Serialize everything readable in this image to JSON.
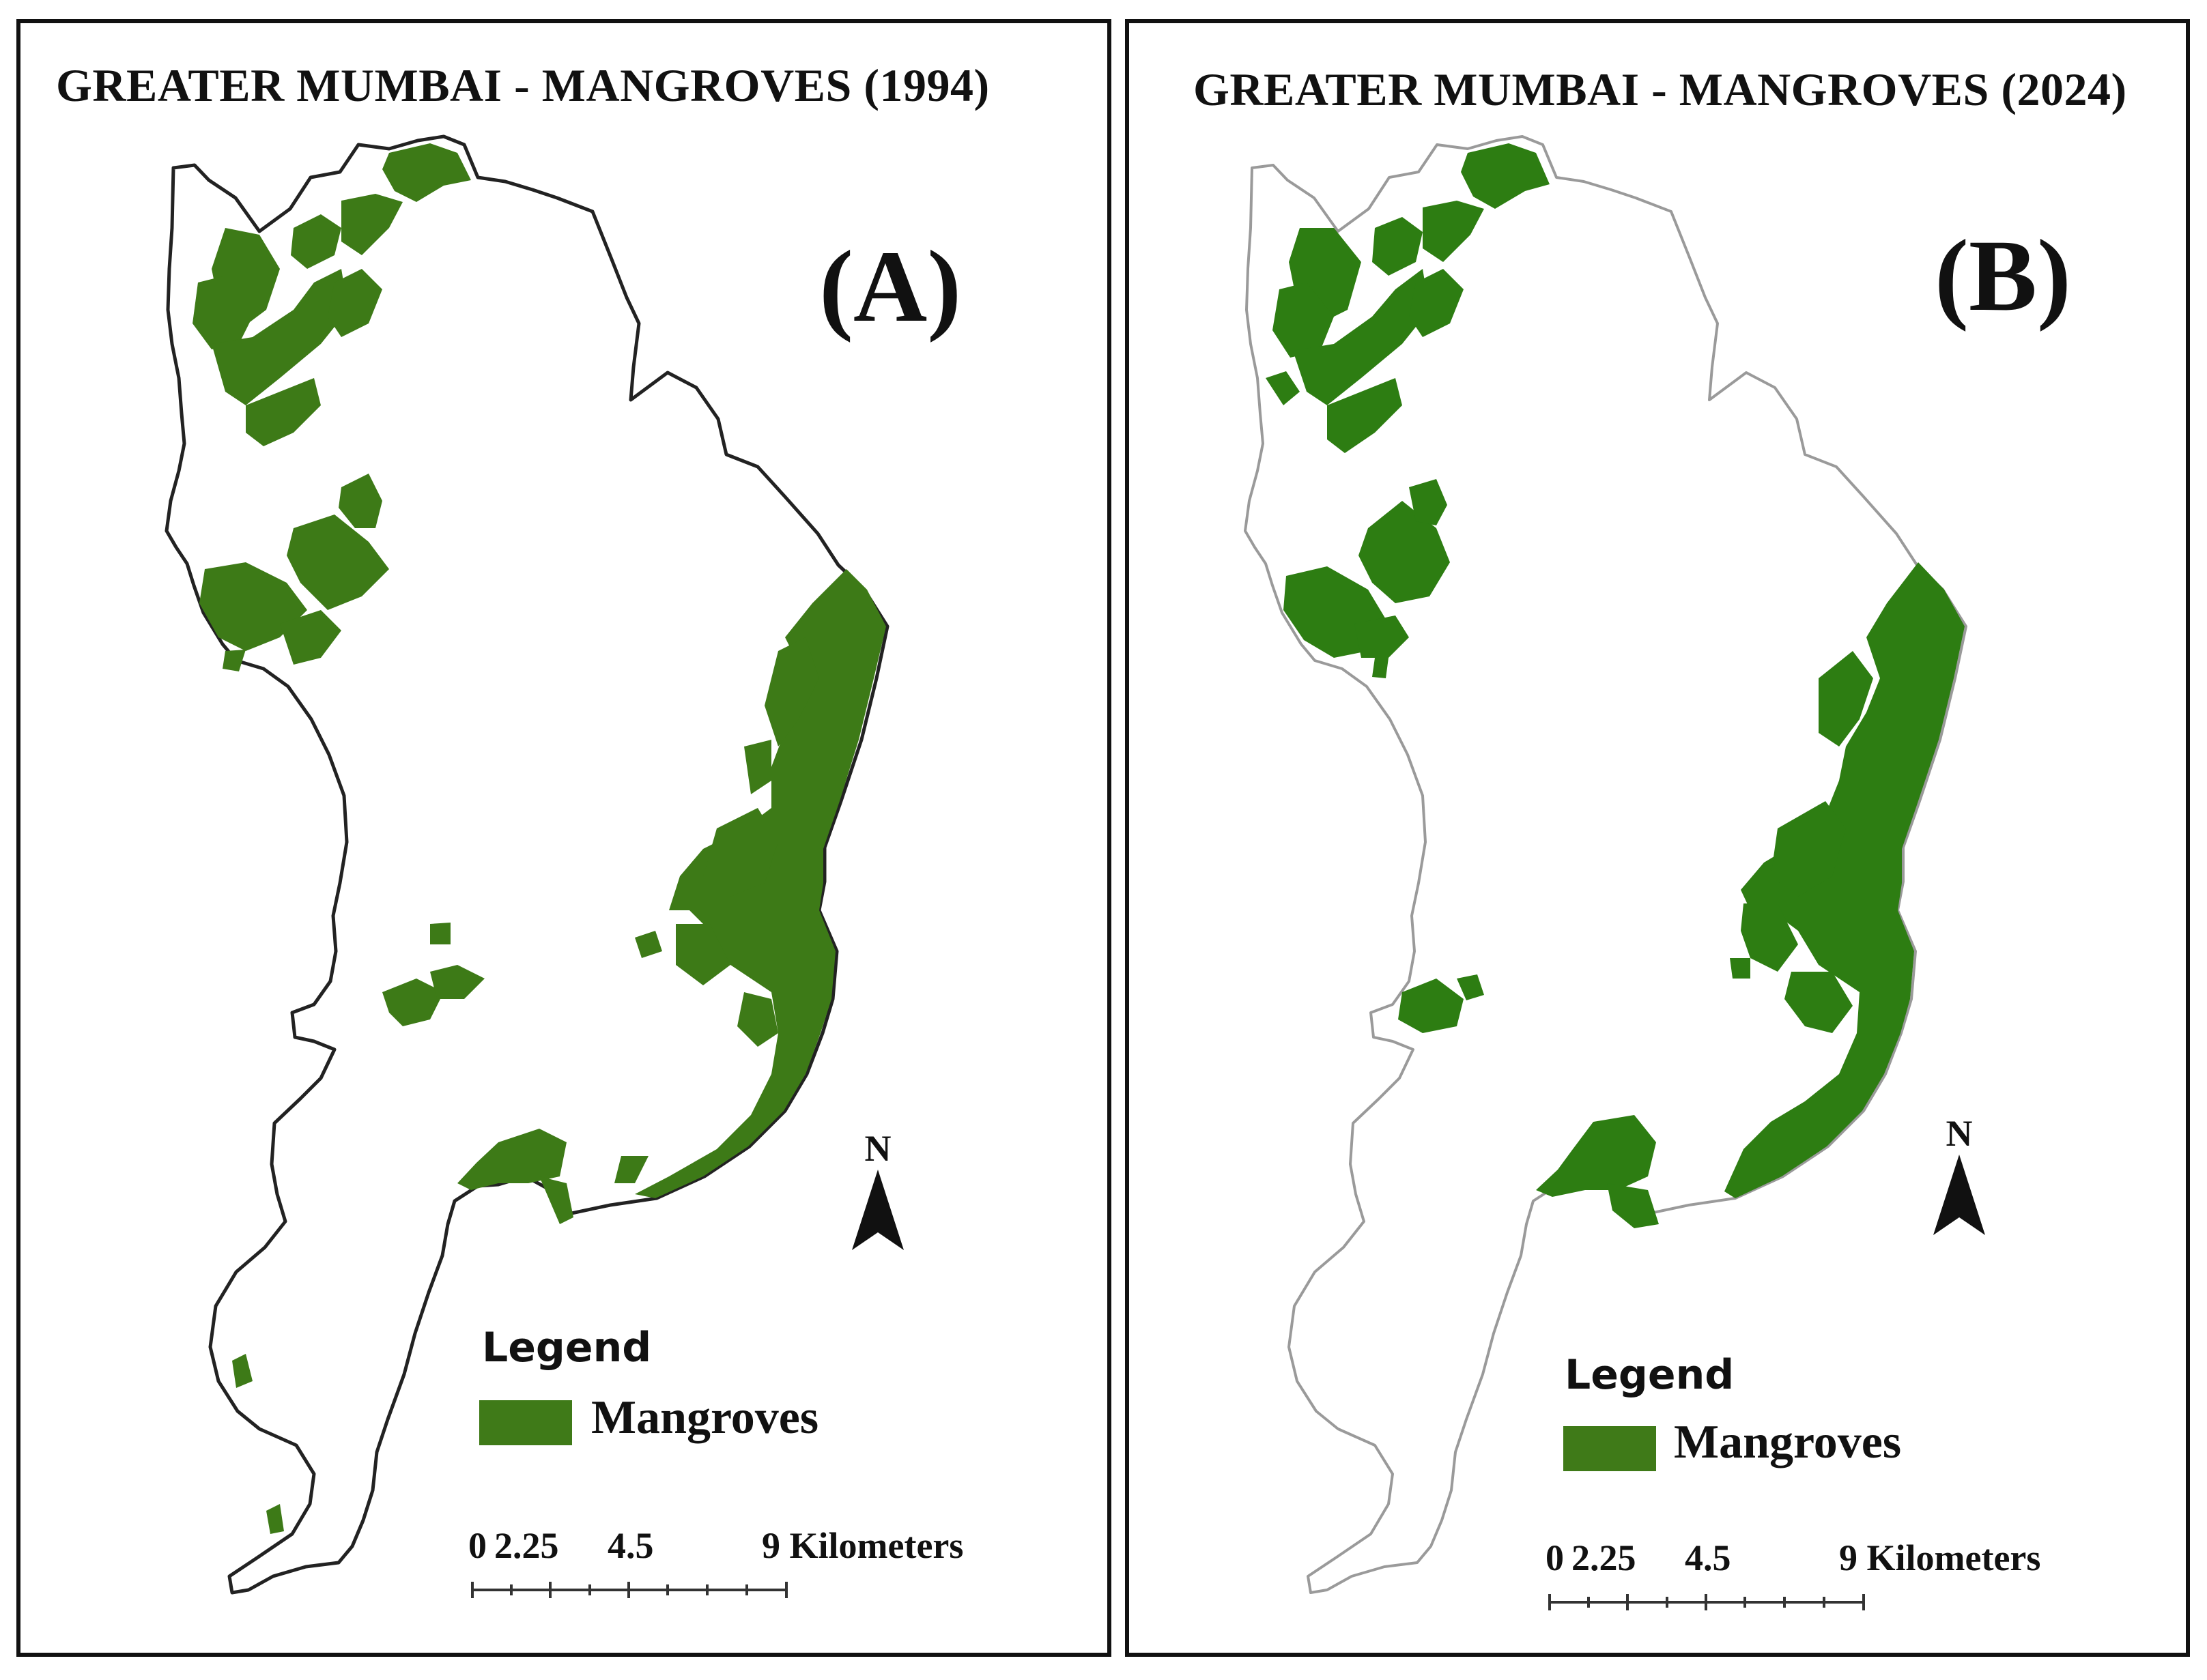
{
  "panels": [
    {
      "title": "GREATER MUMBAI - MANGROVES (1994)",
      "label": "(A)",
      "north_label": "N",
      "legend": {
        "title": "Legend",
        "items": [
          {
            "label": "Mangroves",
            "color": "#3f7a18"
          }
        ]
      },
      "scale_bar": {
        "labels": [
          "0",
          "2.25",
          "4.5",
          "9 Kilometers"
        ]
      }
    },
    {
      "title": "GREATER MUMBAI - MANGROVES (2024)",
      "label": "(B)",
      "north_label": "N",
      "legend": {
        "title": "Legend",
        "items": [
          {
            "label": "Mangroves",
            "color": "#3f7a18"
          }
        ]
      },
      "scale_bar": {
        "labels": [
          "0",
          "2.25",
          "4.5",
          "9 Kilometers"
        ]
      }
    }
  ],
  "colors": {
    "mangrove_1994": "#3d7a17",
    "mangrove_2024": "#2d7d12",
    "outline_1994": "#222222",
    "outline_2024": "#9a9a9a"
  }
}
